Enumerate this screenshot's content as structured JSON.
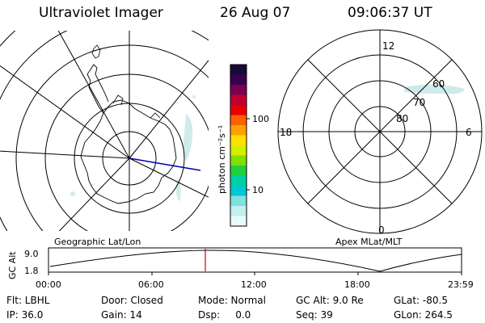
{
  "header": {
    "title": "Ultraviolet Imager",
    "date": "26 Aug 07",
    "time": "09:06:37 UT"
  },
  "left_panel": {
    "caption": "Geographic Lat/Lon"
  },
  "colorbar": {
    "unit": "photon cm⁻²s⁻¹",
    "ticks": [
      "100",
      "10"
    ],
    "colors": [
      "#1a0a3a",
      "#3a0050",
      "#7a0050",
      "#c00030",
      "#e80000",
      "#ff6000",
      "#ffa000",
      "#ffe000",
      "#d0f000",
      "#80e000",
      "#20d040",
      "#00d0a0",
      "#00c8d0",
      "#80e0e0",
      "#c0f0f0",
      "#e8fafa"
    ]
  },
  "right_panel": {
    "caption": "Apex  MLat/MLT",
    "mlt_labels": {
      "top": "12",
      "left": "18",
      "right": "6",
      "bottom": "0"
    },
    "lat_labels": [
      "60",
      "70",
      "80"
    ]
  },
  "alt_plot": {
    "ylabel": "GC Alt",
    "yticks": [
      "9.0",
      "1.8"
    ],
    "xticks": [
      "00:00",
      "06:00",
      "12:00",
      "18:00",
      "23:59"
    ],
    "marker_time": "09:06"
  },
  "status": {
    "row1": [
      {
        "label": "Flt: LBHL"
      },
      {
        "label": "Door: Closed"
      },
      {
        "label": "Mode: Normal"
      },
      {
        "label": "GC Alt: 9.0 Re"
      },
      {
        "label": "GLat: -80.5"
      }
    ],
    "row2": [
      {
        "label": "IP: 36.0"
      },
      {
        "label": "Gain: 14"
      },
      {
        "label": "Dsp:     0.0"
      },
      {
        "label": "Seq: 39"
      },
      {
        "label": "GLon: 264.5"
      }
    ]
  }
}
